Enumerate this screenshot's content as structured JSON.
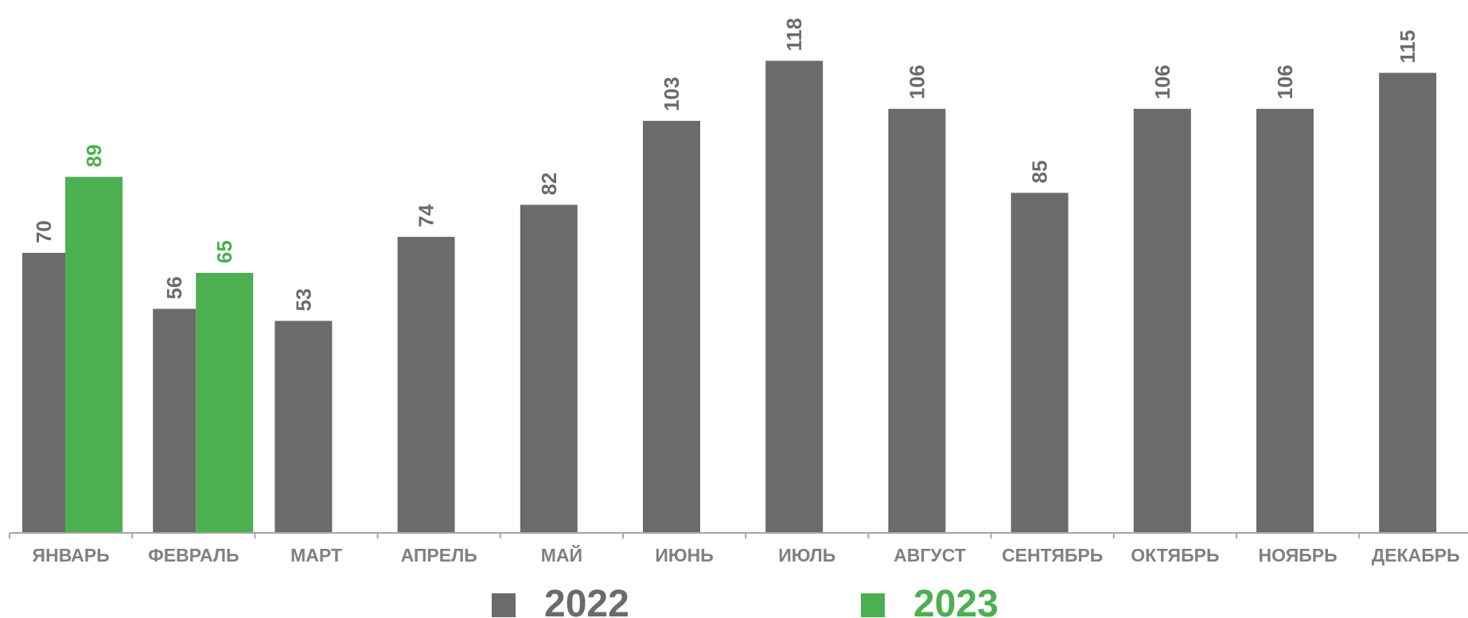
{
  "chart_data": {
    "type": "bar",
    "categories": [
      "ЯНВАРЬ",
      "ФЕВРАЛЬ",
      "МАРТ",
      "АПРЕЛЬ",
      "МАЙ",
      "ИЮНЬ",
      "ИЮЛЬ",
      "АВГУСТ",
      "СЕНТЯБРЬ",
      "ОКТЯБРЬ",
      "НОЯБРЬ",
      "ДЕКАБРЬ"
    ],
    "series": [
      {
        "name": "2022",
        "color": "#6b6b6b",
        "values": [
          70,
          56,
          53,
          74,
          82,
          103,
          118,
          106,
          85,
          106,
          106,
          115
        ]
      },
      {
        "name": "2023",
        "color": "#4caf50",
        "values": [
          89,
          65,
          null,
          null,
          null,
          null,
          null,
          null,
          null,
          null,
          null,
          null
        ]
      }
    ],
    "ylim": [
      0,
      130
    ],
    "grid": false,
    "legend_position": "bottom"
  }
}
